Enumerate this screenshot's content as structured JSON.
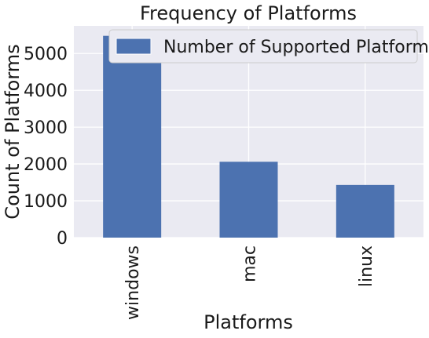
{
  "chart_data": {
    "type": "bar",
    "title": "Frequency of Platforms",
    "xlabel": "Platforms",
    "ylabel": "Count of Platforms",
    "categories": [
      "windows",
      "mac",
      "linux"
    ],
    "series": [
      {
        "name": "Number of Supported Platforms",
        "values": [
          5480,
          2060,
          1430
        ]
      }
    ],
    "ylim": [
      0,
      5750
    ],
    "yticks": [
      0,
      1000,
      2000,
      3000,
      4000,
      5000
    ],
    "grid": true,
    "legend": "top-right",
    "bar_color": "#4c72b0",
    "plot_background": "#eaeaf2"
  }
}
